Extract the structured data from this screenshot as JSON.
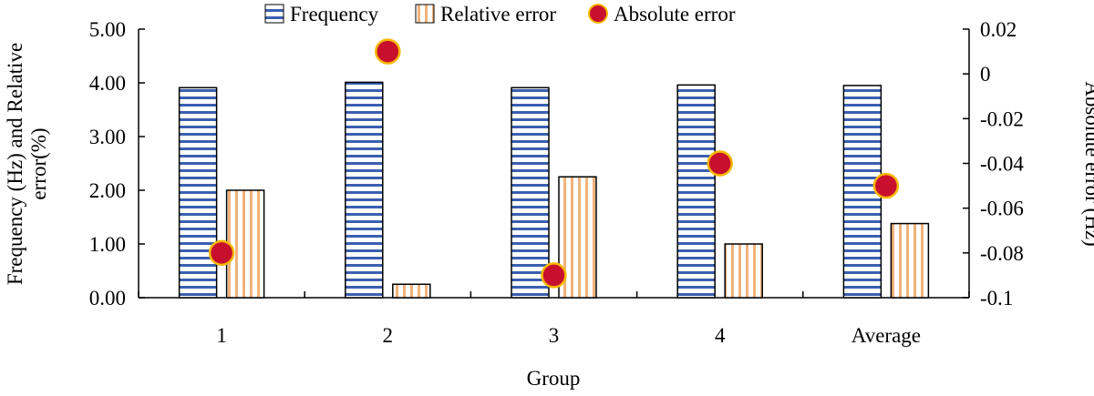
{
  "chart_data": {
    "type": "bar",
    "title": "",
    "categories": [
      "1",
      "2",
      "3",
      "4",
      "Average"
    ],
    "xlabel": "Group",
    "ylabel_left_line1": "Frequency (Hz) and Relative",
    "ylabel_left_line2": "error(%)",
    "ylabel_right": "Absolute error (Hz)",
    "ylim_left": [
      0,
      5
    ],
    "yticks_left": [
      "0.00",
      "1.00",
      "2.00",
      "3.00",
      "4.00",
      "5.00"
    ],
    "ylim_right": [
      -0.1,
      0.02
    ],
    "yticks_right": [
      "-0.1",
      "-0.08",
      "-0.06",
      "-0.04",
      "-0.02",
      "0",
      "0.02"
    ],
    "legend_position": "top",
    "series": [
      {
        "name": "Frequency",
        "type": "bar",
        "axis": "left",
        "pattern": "horizontal-stripes",
        "color": "#3a5fb0",
        "values": [
          3.91,
          4.01,
          3.91,
          3.96,
          3.95
        ]
      },
      {
        "name": "Relative error",
        "type": "bar",
        "axis": "left",
        "pattern": "vertical-stripes",
        "color": "#f2b27a",
        "values": [
          2.0,
          0.25,
          2.25,
          1.0,
          1.38
        ]
      },
      {
        "name": "Absolute error",
        "type": "scatter",
        "axis": "right",
        "color": "#c8102e",
        "edge_color": "#f5b800",
        "values": [
          -0.08,
          0.01,
          -0.09,
          -0.04,
          -0.05
        ]
      }
    ]
  }
}
